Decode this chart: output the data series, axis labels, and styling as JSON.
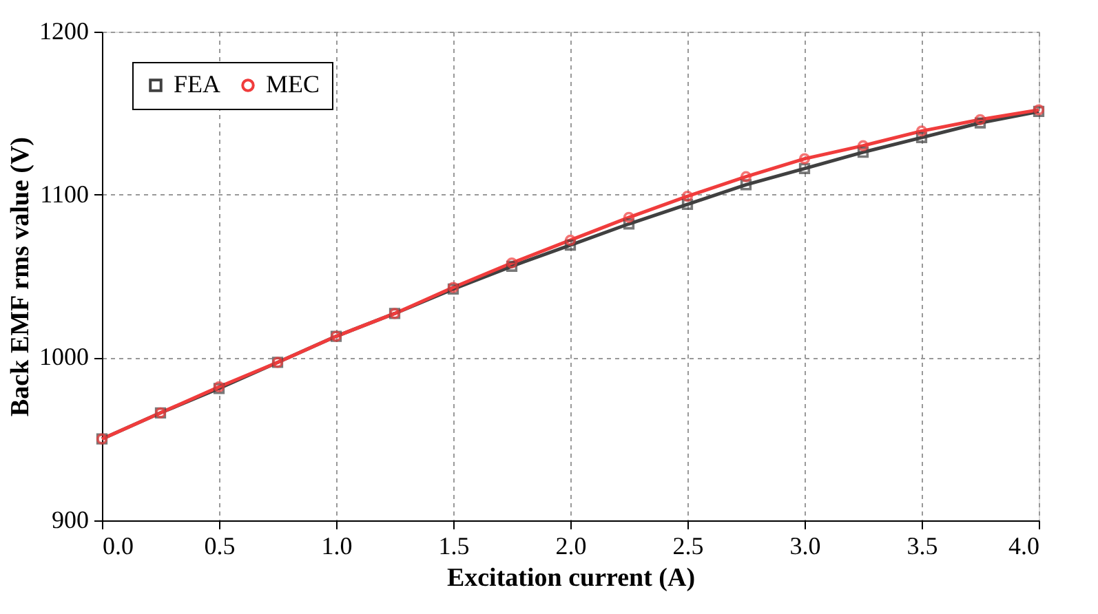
{
  "chart_data": {
    "type": "line",
    "xlabel": "Excitation current (A)",
    "ylabel": "Back EMF rms value (V)",
    "x": [
      0,
      0.25,
      0.5,
      0.75,
      1.0,
      1.25,
      1.5,
      1.75,
      2.0,
      2.25,
      2.5,
      2.75,
      3.0,
      3.25,
      3.5,
      3.75,
      4.0
    ],
    "series": [
      {
        "name": "FEA",
        "color": "#404040",
        "marker": "square",
        "values": [
          950,
          966,
          981,
          997,
          1013,
          1027,
          1042,
          1056,
          1069,
          1082,
          1094,
          1106,
          1116,
          1126,
          1135,
          1144,
          1151
        ]
      },
      {
        "name": "MEC",
        "color": "#f03c3c",
        "marker": "circle",
        "values": [
          950,
          966,
          982,
          997,
          1013,
          1027,
          1043,
          1058,
          1072,
          1086,
          1099,
          1111,
          1122,
          1130,
          1139,
          1146,
          1152
        ]
      }
    ],
    "xlim": [
      0,
      4
    ],
    "xticks": [
      {
        "value": 0,
        "label": "0.0"
      },
      0.5,
      {
        "value": 1,
        "label": "1.0"
      },
      1.5,
      {
        "value": 2,
        "label": "2.0"
      },
      2.5,
      {
        "value": 3,
        "label": "3.0"
      },
      3.5,
      {
        "value": 4,
        "label": "4.0"
      }
    ],
    "ylim": [
      900,
      1200
    ],
    "yticks": [
      900,
      1000,
      1100,
      1200
    ],
    "grid": true,
    "legend": "top left",
    "line_style": "solid"
  }
}
